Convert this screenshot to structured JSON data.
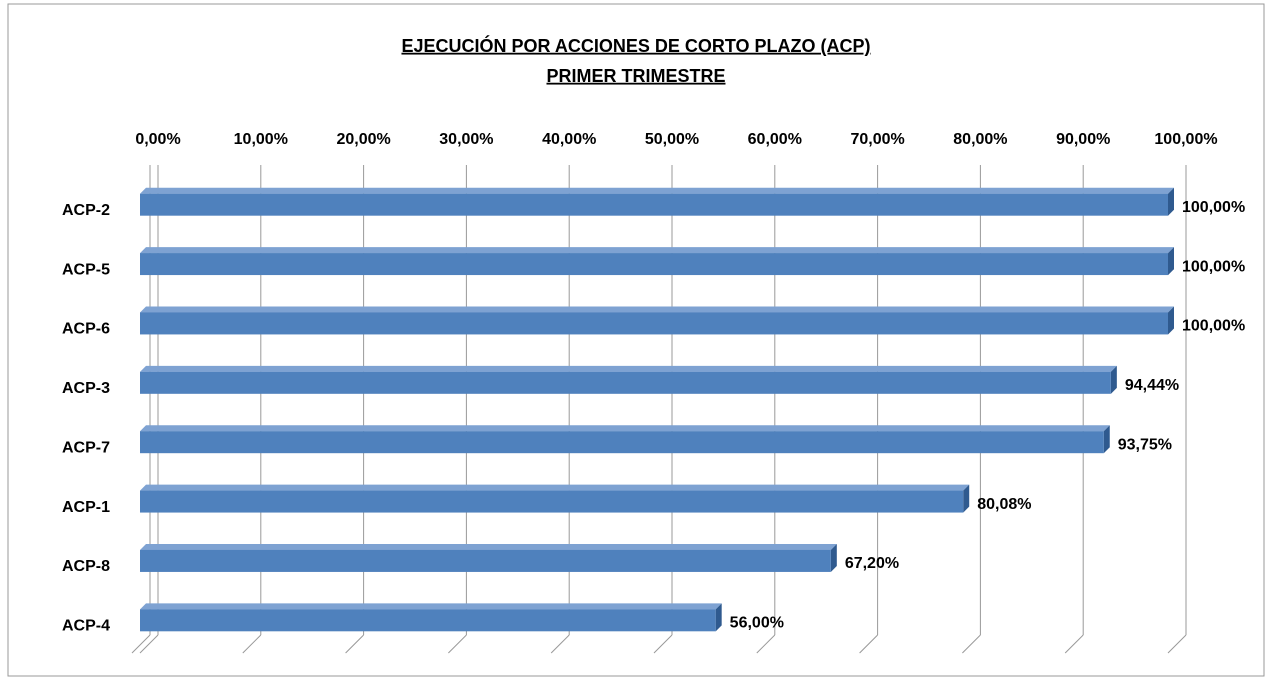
{
  "chart_data": {
    "type": "bar",
    "orientation": "horizontal",
    "title": "EJECUCIÓN POR ACCIONES DE CORTO PLAZO (ACP)",
    "subtitle": "PRIMER TRIMESTRE",
    "categories": [
      "ACP-2",
      "ACP-5",
      "ACP-6",
      "ACP-3",
      "ACP-7",
      "ACP-1",
      "ACP-8",
      "ACP-4"
    ],
    "values": [
      100,
      100,
      100,
      94.44,
      93.75,
      80.08,
      67.2,
      56
    ],
    "value_labels": [
      "100,00%",
      "100,00%",
      "100,00%",
      "94,44%",
      "93,75%",
      "80,08%",
      "67,20%",
      "56,00%"
    ],
    "color": "#4f81bd",
    "xlim": [
      0,
      100
    ],
    "xticks": [
      {
        "value": 0,
        "label": "0,00%"
      },
      {
        "value": 10,
        "label": "10,00%"
      },
      {
        "value": 20,
        "label": "20,00%"
      },
      {
        "value": 30,
        "label": "30,00%"
      },
      {
        "value": 40,
        "label": "40,00%"
      },
      {
        "value": 50,
        "label": "50,00%"
      },
      {
        "value": 60,
        "label": "60,00%"
      },
      {
        "value": 70,
        "label": "70,00%"
      },
      {
        "value": 80,
        "label": "80,00%"
      },
      {
        "value": 90,
        "label": "90,00%"
      },
      {
        "value": 100,
        "label": "100,00%"
      }
    ],
    "grid": true
  }
}
